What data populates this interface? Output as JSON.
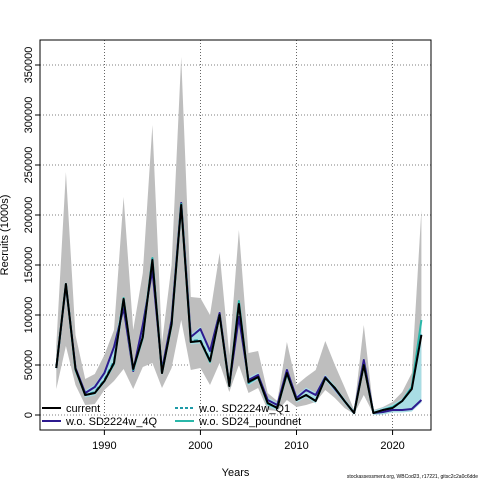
{
  "chart_data": {
    "type": "line",
    "xlabel": "Years",
    "ylabel": "Recruits (1000s)",
    "xlim": [
      1983.3,
      2024.0
    ],
    "ylim": [
      -15000,
      375000
    ],
    "xticks": [
      1990,
      2000,
      2010,
      2020
    ],
    "yticks": [
      0,
      50000,
      100000,
      150000,
      200000,
      250000,
      300000,
      350000
    ],
    "ytick_labels": [
      "0",
      "50000",
      "100000",
      "150000",
      "200000",
      "250000",
      "300000",
      "350000"
    ],
    "grid": true,
    "legend_position": "bottom-left",
    "x": [
      1985,
      1986,
      1987,
      1988,
      1989,
      1990,
      1991,
      1992,
      1993,
      1994,
      1995,
      1996,
      1997,
      1998,
      1999,
      2000,
      2001,
      2002,
      2003,
      2004,
      2005,
      2006,
      2007,
      2008,
      2009,
      2010,
      2011,
      2012,
      2013,
      2014,
      2015,
      2016,
      2017,
      2018,
      2019,
      2020,
      2021,
      2022,
      2023
    ],
    "band": {
      "upper": [
        70000,
        243000,
        80000,
        36000,
        41000,
        60000,
        85000,
        218000,
        85000,
        142000,
        290000,
        72000,
        150000,
        358000,
        118000,
        117000,
        100000,
        162000,
        60000,
        185000,
        62000,
        64000,
        22000,
        14000,
        73000,
        30000,
        38000,
        45000,
        74000,
        50000,
        28000,
        5000,
        90000,
        5000,
        8000,
        13000,
        23000,
        42000,
        205000
      ],
      "lower": [
        26000,
        69000,
        30000,
        10000,
        11000,
        25000,
        34000,
        46000,
        26000,
        48000,
        52000,
        27000,
        47000,
        95000,
        45000,
        47000,
        30000,
        52000,
        23000,
        50000,
        22000,
        27000,
        5000,
        4000,
        15000,
        8000,
        10000,
        13000,
        25000,
        17000,
        7000,
        1000,
        20000,
        1000,
        1000,
        3000,
        5000,
        10000,
        25000
      ]
    },
    "series": [
      {
        "name": "current",
        "color": "#000000",
        "dash": "solid",
        "values": [
          47000,
          131000,
          46000,
          20000,
          22000,
          34000,
          52000,
          116000,
          46000,
          78000,
          155000,
          42000,
          91000,
          210000,
          73000,
          74000,
          54000,
          100000,
          29000,
          111000,
          33000,
          38000,
          12000,
          7000,
          42000,
          15000,
          20000,
          14000,
          37000,
          27000,
          14000,
          2000,
          50000,
          2000,
          5000,
          7000,
          14000,
          26000,
          80000
        ]
      },
      {
        "name": "w.o. SD2224w_4Q",
        "color": "#2d1a8f",
        "dash": "solid",
        "values": [
          47000,
          130000,
          47000,
          22000,
          28000,
          42000,
          68000,
          107000,
          44000,
          90000,
          145000,
          45000,
          95000,
          212000,
          78000,
          86000,
          64000,
          102000,
          30000,
          98000,
          35000,
          40000,
          15000,
          10000,
          45000,
          17000,
          25000,
          20000,
          38000,
          26000,
          14000,
          2000,
          55000,
          2000,
          3000,
          5000,
          5000,
          6000,
          15000
        ]
      },
      {
        "name": "w.o. SD2224w_Q1",
        "color": "#1e9aa8",
        "dash": "dashed",
        "values": [
          47000,
          131000,
          46000,
          20000,
          23000,
          35000,
          54000,
          116000,
          45000,
          79000,
          156000,
          42000,
          92000,
          211000,
          74000,
          75000,
          55000,
          100000,
          29000,
          112000,
          32000,
          38000,
          12000,
          7000,
          42000,
          15000,
          20000,
          14000,
          37000,
          27000,
          14000,
          2000,
          50000,
          2000,
          5000,
          7000,
          14000,
          27000,
          82000
        ]
      },
      {
        "name": "w.o. SD24_poundnet",
        "color": "#2ab7a9",
        "dash": "solid",
        "values": [
          47000,
          131000,
          45000,
          20000,
          22000,
          34000,
          51000,
          117000,
          45000,
          77000,
          157000,
          42000,
          90000,
          211000,
          73000,
          74000,
          53000,
          100000,
          29000,
          114000,
          32000,
          38000,
          11000,
          7000,
          41000,
          15000,
          20000,
          14000,
          37000,
          27000,
          14000,
          2000,
          50000,
          2000,
          5000,
          8000,
          14000,
          28000,
          95000
        ]
      }
    ],
    "legend": [
      {
        "name": "current",
        "color": "#000000",
        "dash": "solid"
      },
      {
        "name": "w.o. SD2224w_4Q",
        "color": "#2d1a8f",
        "dash": "solid"
      },
      {
        "name": "w.o. SD2224w_Q1",
        "color": "#1e9aa8",
        "dash": "dashed"
      },
      {
        "name": "w.o. SD24_poundnet",
        "color": "#2ab7a9",
        "dash": "solid"
      }
    ],
    "band_color": "#bebebe",
    "inner_band_color": "#a9dde4",
    "footnote": "stockassessment.org, WBCod23, r17221, gitsc2c2a0c6dde"
  }
}
